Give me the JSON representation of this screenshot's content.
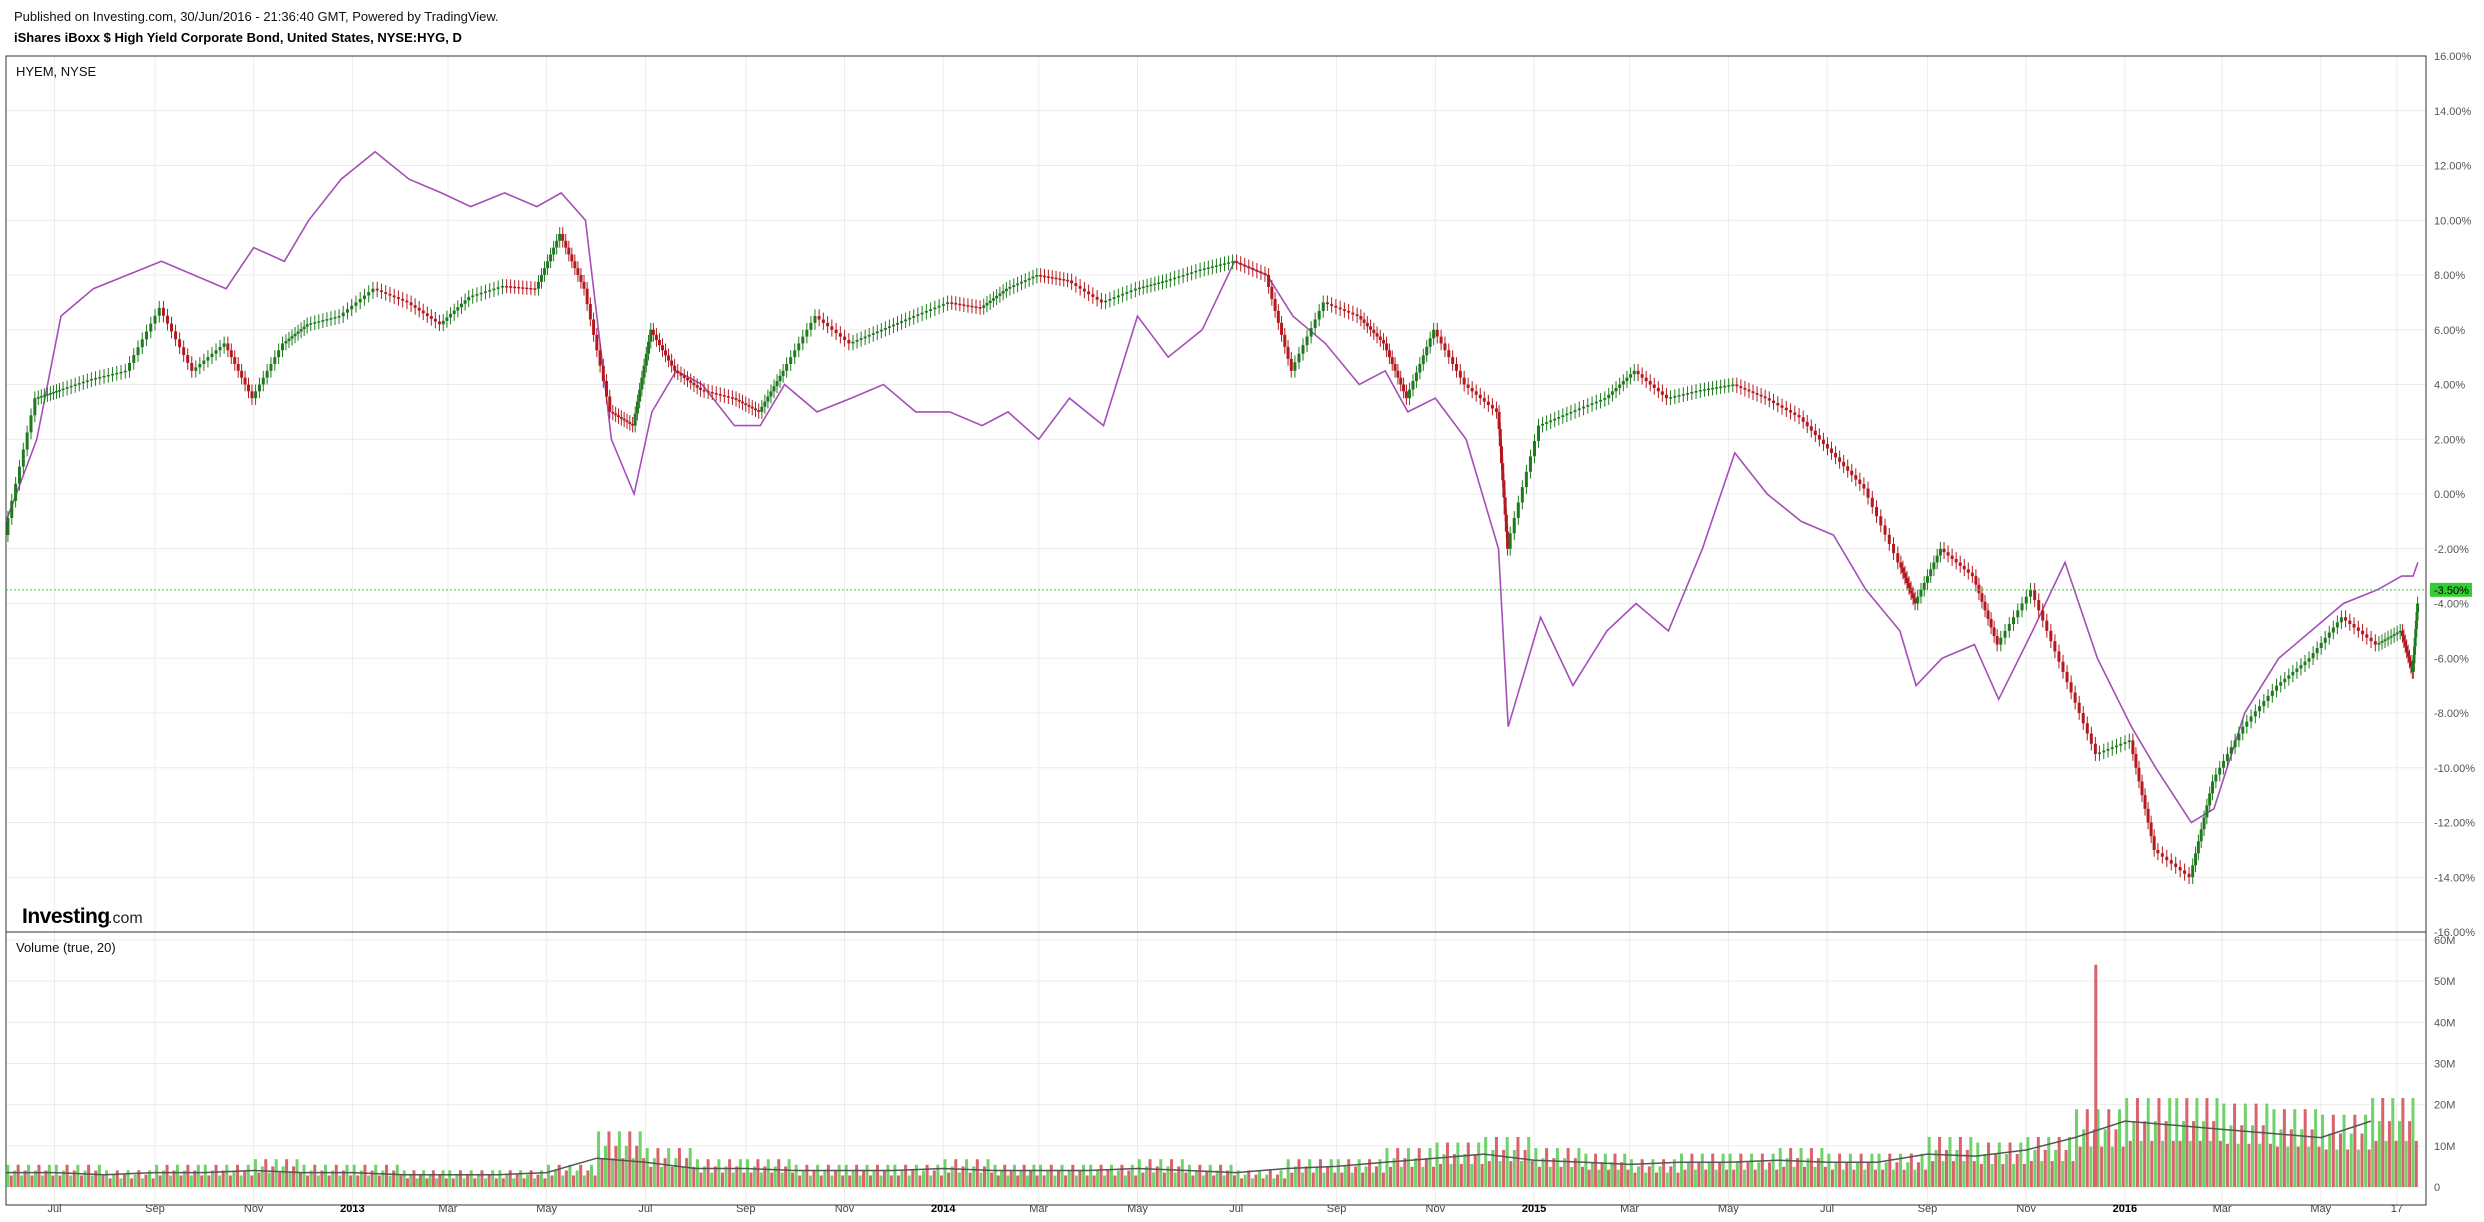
{
  "header": {
    "published": "Published on Investing.com, 30/Jun/2016 - 21:36:40 GMT, Powered by TradingView.",
    "title": "iShares iBoxx $ High Yield Corporate Bond, United States, NYSE:HYG, D"
  },
  "price_panel": {
    "label": "HYEM, NYSE",
    "logo_main": "Investing",
    "logo_suffix": ".com"
  },
  "volume_panel": {
    "label": "Volume (true, 20)"
  },
  "colors": {
    "up": "#1f7a1f",
    "down": "#b3191f",
    "compare_line": "#a44fb8",
    "volume_up": "#6fd26a",
    "volume_down": "#d9626b",
    "volume_ma": "#555555",
    "current_marker": "#33cc33"
  },
  "chart_data": [
    {
      "type": "line",
      "description_series": [
        {
          "name": "HYEM, NYSE",
          "style": "candlestick",
          "x": [
            "2012-06-01",
            "2012-06-20",
            "2012-07-05",
            "2012-07-25",
            "2012-08-15",
            "2012-09-05",
            "2012-09-25",
            "2012-10-15",
            "2012-11-01",
            "2012-11-20",
            "2012-12-05",
            "2012-12-25",
            "2013-01-15",
            "2013-02-05",
            "2013-02-25",
            "2013-03-15",
            "2013-04-05",
            "2013-04-25",
            "2013-05-10",
            "2013-05-25",
            "2013-06-10",
            "2013-06-24",
            "2013-07-05",
            "2013-07-20",
            "2013-08-05",
            "2013-08-25",
            "2013-09-10",
            "2013-09-25",
            "2013-10-15",
            "2013-11-05",
            "2013-11-25",
            "2013-12-15",
            "2014-01-05",
            "2014-01-25",
            "2014-02-10",
            "2014-03-01",
            "2014-03-20",
            "2014-04-10",
            "2014-05-01",
            "2014-05-20",
            "2014-06-10",
            "2014-06-30",
            "2014-07-20",
            "2014-08-05",
            "2014-08-25",
            "2014-09-15",
            "2014-10-01",
            "2014-10-15",
            "2014-11-01",
            "2014-11-20",
            "2014-12-10",
            "2014-12-16",
            "2015-01-05",
            "2015-01-25",
            "2015-02-15",
            "2015-03-05",
            "2015-03-25",
            "2015-04-15",
            "2015-05-05",
            "2015-05-25",
            "2015-06-15",
            "2015-07-05",
            "2015-07-25",
            "2015-08-15",
            "2015-08-25",
            "2015-09-10",
            "2015-09-30",
            "2015-10-15",
            "2015-11-05",
            "2015-11-25",
            "2015-12-15",
            "2016-01-05",
            "2016-01-20",
            "2016-02-11",
            "2016-02-25",
            "2016-03-15",
            "2016-04-05",
            "2016-04-25",
            "2016-05-15",
            "2016-06-05",
            "2016-06-20",
            "2016-06-27",
            "2016-06-30"
          ],
          "values": [
            -1.5,
            3.5,
            3.8,
            4.2,
            4.5,
            6.8,
            4.5,
            5.5,
            3.5,
            5.5,
            6.2,
            6.5,
            7.5,
            7.0,
            6.2,
            7.2,
            7.6,
            7.5,
            9.5,
            7.5,
            3.0,
            2.5,
            6.0,
            4.5,
            3.8,
            3.5,
            3.0,
            4.5,
            6.5,
            5.5,
            6.0,
            6.5,
            7.0,
            6.8,
            7.5,
            8.0,
            7.8,
            7.0,
            7.5,
            7.8,
            8.2,
            8.5,
            8.0,
            4.5,
            7.0,
            6.5,
            5.5,
            3.5,
            6.0,
            4.0,
            3.0,
            -2.0,
            2.5,
            3.0,
            3.5,
            4.5,
            3.5,
            3.8,
            4.0,
            3.5,
            2.8,
            1.5,
            0.2,
            -2.5,
            -4.0,
            -2.0,
            -3.0,
            -5.5,
            -3.5,
            -6.5,
            -9.5,
            -9.0,
            -13.0,
            -14.0,
            -10.5,
            -8.5,
            -7.0,
            -6.0,
            -4.5,
            -5.5,
            -5.0,
            -6.5,
            -4.0
          ]
        },
        {
          "name": "iShares iBoxx $ High Yield Corporate Bond, United States, NYSE:HYG",
          "style": "line",
          "x": [
            "2012-06-01",
            "2012-06-20",
            "2012-07-05",
            "2012-07-25",
            "2012-08-15",
            "2012-09-05",
            "2012-09-25",
            "2012-10-15",
            "2012-11-01",
            "2012-11-20",
            "2012-12-05",
            "2012-12-25",
            "2013-01-15",
            "2013-02-05",
            "2013-02-25",
            "2013-03-15",
            "2013-04-05",
            "2013-04-25",
            "2013-05-10",
            "2013-05-25",
            "2013-06-10",
            "2013-06-24",
            "2013-07-05",
            "2013-07-20",
            "2013-08-05",
            "2013-08-25",
            "2013-09-10",
            "2013-09-25",
            "2013-10-15",
            "2013-11-05",
            "2013-11-25",
            "2013-12-15",
            "2014-01-05",
            "2014-01-25",
            "2014-02-10",
            "2014-03-01",
            "2014-03-20",
            "2014-04-10",
            "2014-05-01",
            "2014-05-20",
            "2014-06-10",
            "2014-06-30",
            "2014-07-20",
            "2014-08-05",
            "2014-08-25",
            "2014-09-15",
            "2014-10-01",
            "2014-10-15",
            "2014-11-01",
            "2014-11-20",
            "2014-12-10",
            "2014-12-16",
            "2015-01-05",
            "2015-01-25",
            "2015-02-15",
            "2015-03-05",
            "2015-03-25",
            "2015-04-15",
            "2015-05-05",
            "2015-05-25",
            "2015-06-15",
            "2015-07-05",
            "2015-07-25",
            "2015-08-15",
            "2015-08-25",
            "2015-09-10",
            "2015-09-30",
            "2015-10-15",
            "2015-11-05",
            "2015-11-25",
            "2015-12-15",
            "2016-01-05",
            "2016-01-20",
            "2016-02-11",
            "2016-02-25",
            "2016-03-15",
            "2016-04-05",
            "2016-04-25",
            "2016-05-15",
            "2016-06-05",
            "2016-06-20",
            "2016-06-27",
            "2016-06-30"
          ],
          "values": [
            -1.0,
            2.0,
            6.5,
            7.5,
            8.0,
            8.5,
            8.0,
            7.5,
            9.0,
            8.5,
            10.0,
            11.5,
            12.5,
            11.5,
            11.0,
            10.5,
            11.0,
            10.5,
            11.0,
            10.0,
            2.0,
            0.0,
            3.0,
            4.5,
            4.0,
            2.5,
            2.5,
            4.0,
            3.0,
            3.5,
            4.0,
            3.0,
            3.0,
            2.5,
            3.0,
            2.0,
            3.5,
            2.5,
            6.5,
            5.0,
            6.0,
            8.5,
            8.0,
            6.5,
            5.5,
            4.0,
            4.5,
            3.0,
            3.5,
            2.0,
            -2.0,
            -8.5,
            -4.5,
            -7.0,
            -5.0,
            -4.0,
            -5.0,
            -2.0,
            1.5,
            0.0,
            -1.0,
            -1.5,
            -3.5,
            -5.0,
            -7.0,
            -6.0,
            -5.5,
            -7.5,
            -5.0,
            -2.5,
            -6.0,
            -8.5,
            -10.0,
            -12.0,
            -11.5,
            -8.0,
            -6.0,
            -5.0,
            -4.0,
            -3.5,
            -3.0,
            -3.0,
            -2.5
          ]
        }
      ],
      "ylim": [
        -16,
        16
      ],
      "y_tick_labels": [
        "16.00%",
        "14.00%",
        "12.00%",
        "10.00%",
        "8.00%",
        "6.00%",
        "4.00%",
        "2.00%",
        "0.00%",
        "-2.00%",
        "-4.00%",
        "-6.00%",
        "-8.00%",
        "-10.00%",
        "-12.00%",
        "-14.00%",
        "-16.00%"
      ],
      "y_ticks": [
        16,
        14,
        12,
        10,
        8,
        6,
        4,
        2,
        0,
        -2,
        -4,
        -6,
        -8,
        -10,
        -12,
        -14,
        -16
      ],
      "x_range": [
        "2012-06-01",
        "2016-07-05"
      ],
      "x_tick_labels": [
        {
          "label": "Jul",
          "date": "2012-07-01",
          "bold": false
        },
        {
          "label": "Sep",
          "date": "2012-09-01",
          "bold": false
        },
        {
          "label": "Nov",
          "date": "2012-11-01",
          "bold": false
        },
        {
          "label": "2013",
          "date": "2013-01-01",
          "bold": true
        },
        {
          "label": "Mar",
          "date": "2013-03-01",
          "bold": false
        },
        {
          "label": "May",
          "date": "2013-05-01",
          "bold": false
        },
        {
          "label": "Jul",
          "date": "2013-07-01",
          "bold": false
        },
        {
          "label": "Sep",
          "date": "2013-09-01",
          "bold": false
        },
        {
          "label": "Nov",
          "date": "2013-11-01",
          "bold": false
        },
        {
          "label": "2014",
          "date": "2014-01-01",
          "bold": true
        },
        {
          "label": "Mar",
          "date": "2014-03-01",
          "bold": false
        },
        {
          "label": "May",
          "date": "2014-05-01",
          "bold": false
        },
        {
          "label": "Jul",
          "date": "2014-07-01",
          "bold": false
        },
        {
          "label": "Sep",
          "date": "2014-09-01",
          "bold": false
        },
        {
          "label": "Nov",
          "date": "2014-11-01",
          "bold": false
        },
        {
          "label": "2015",
          "date": "2015-01-01",
          "bold": true
        },
        {
          "label": "Mar",
          "date": "2015-03-01",
          "bold": false
        },
        {
          "label": "May",
          "date": "2015-05-01",
          "bold": false
        },
        {
          "label": "Jul",
          "date": "2015-07-01",
          "bold": false
        },
        {
          "label": "Sep",
          "date": "2015-09-01",
          "bold": false
        },
        {
          "label": "Nov",
          "date": "2015-11-01",
          "bold": false
        },
        {
          "label": "2016",
          "date": "2016-01-01",
          "bold": true
        },
        {
          "label": "Mar",
          "date": "2016-03-01",
          "bold": false
        },
        {
          "label": "May",
          "date": "2016-05-01",
          "bold": false
        },
        {
          "label": "17",
          "date": "2016-06-17",
          "bold": false
        }
      ],
      "current_value": -3.5,
      "current_label": "-3.50%",
      "grid": true
    },
    {
      "type": "bar",
      "name": "Volume (true, 20)",
      "x": [
        "2012-06-01",
        "2012-07-01",
        "2012-08-01",
        "2012-09-01",
        "2012-10-01",
        "2012-11-01",
        "2012-12-01",
        "2013-01-01",
        "2013-02-01",
        "2013-03-01",
        "2013-04-01",
        "2013-05-01",
        "2013-06-01",
        "2013-07-01",
        "2013-08-01",
        "2013-09-01",
        "2013-10-01",
        "2013-11-01",
        "2013-12-01",
        "2014-01-01",
        "2014-02-01",
        "2014-03-01",
        "2014-04-01",
        "2014-05-01",
        "2014-06-01",
        "2014-07-01",
        "2014-08-01",
        "2014-09-01",
        "2014-10-01",
        "2014-11-01",
        "2014-12-01",
        "2015-01-01",
        "2015-02-01",
        "2015-03-01",
        "2015-04-01",
        "2015-05-01",
        "2015-06-01",
        "2015-07-01",
        "2015-08-01",
        "2015-09-01",
        "2015-10-01",
        "2015-11-01",
        "2015-12-01",
        "2016-01-01",
        "2016-02-01",
        "2016-03-01",
        "2016-04-01",
        "2016-05-01",
        "2016-06-01"
      ],
      "values": [
        4,
        4,
        3,
        4,
        4,
        5,
        4,
        4,
        3,
        3,
        3,
        4,
        10,
        7,
        5,
        5,
        4,
        4,
        4,
        5,
        4,
        4,
        4,
        5,
        4,
        3,
        5,
        5,
        7,
        8,
        9,
        7,
        6,
        5,
        6,
        6,
        7,
        6,
        6,
        9,
        8,
        9,
        14,
        16,
        16,
        15,
        14,
        13,
        16
      ],
      "ma_values": [
        3.5,
        3.5,
        3,
        3.5,
        3.5,
        4,
        3.5,
        3.5,
        3,
        3,
        3,
        3.5,
        7,
        6,
        4.5,
        4.5,
        4,
        4,
        4,
        4.5,
        4,
        4,
        4,
        4.5,
        4,
        3.5,
        4.5,
        5,
        6,
        7,
        8,
        6.5,
        6,
        5.5,
        6,
        6,
        6.5,
        6,
        6,
        8,
        7.5,
        9,
        12,
        16,
        15,
        14,
        13,
        12,
        16
      ],
      "peak_value": 54,
      "ylim": [
        0,
        60
      ],
      "y_tick_labels": [
        "60M",
        "50M",
        "40M",
        "30M",
        "20M",
        "10M",
        "0"
      ],
      "y_ticks": [
        60,
        50,
        40,
        30,
        20,
        10,
        0
      ],
      "unit": "M"
    }
  ]
}
